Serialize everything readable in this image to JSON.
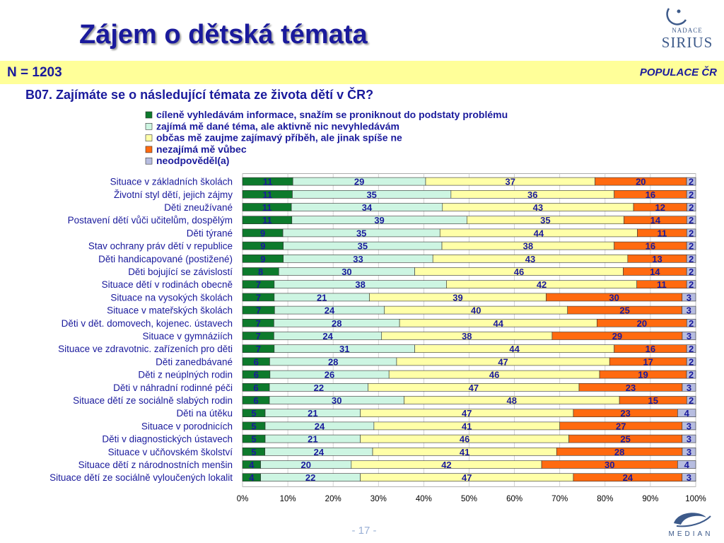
{
  "slide": {
    "title": "Zájem o dětská témata",
    "sample": "N = 1203",
    "population": "POPULACE ČR",
    "question": "B07. Zajímáte se o následující témata ze života dětí v ČR?",
    "page_number": "- 17 -"
  },
  "logos": {
    "sirius_line1": "NADACE",
    "sirius_line2": "SIRIUS",
    "median": "MEDIAN"
  },
  "chart_data": {
    "type": "bar",
    "orientation": "horizontal",
    "stacked": "percent",
    "title": "",
    "xlabel": "",
    "ylabel": "",
    "xlim": [
      0,
      100
    ],
    "x_ticks": [
      "0%",
      "10%",
      "20%",
      "30%",
      "40%",
      "50%",
      "60%",
      "70%",
      "80%",
      "90%",
      "100%"
    ],
    "legend_position": "top",
    "grid": true,
    "categories": [
      "Situace v základních školách",
      "Životní styl dětí, jejich zájmy",
      "Děti zneužívané",
      "Postavení dětí vůči učitelům, dospělým",
      "Děti týrané",
      "Stav ochrany práv dětí v republice",
      "Děti handicapované (postižené)",
      "Děti bojující se závislostí",
      "Situace dětí v rodinách obecně",
      "Situace na vysokých školách",
      "Situace v mateřských školách",
      "Děti v dět. domovech, kojenec. ústavech",
      "Situace v gymnáziích",
      "Situace ve zdravotnic. zařízeních pro děti",
      "Děti zanedbávané",
      "Děti z neúplných rodin",
      "Děti v náhradní rodinné péči",
      "Situace dětí ze sociálně slabých rodin",
      "Děti na útěku",
      "Situace v porodnicích",
      "Děti v diagnostických ústavech",
      "Situace v učňovském školství",
      "Situace dětí z národnostních menšin",
      "Situace dětí ze sociálně vyloučených lokalit"
    ],
    "series": [
      {
        "name": "cíleně vyhledávám informace, snažím se proniknout do podstaty problému",
        "color": "#0d7a2c",
        "values": [
          11,
          11,
          11,
          11,
          9,
          9,
          9,
          8,
          7,
          7,
          7,
          7,
          7,
          7,
          6,
          6,
          6,
          6,
          5,
          5,
          5,
          5,
          4,
          4
        ]
      },
      {
        "name": "zajímá mě dané téma, ale aktivně nic nevyhledávám",
        "color": "#cdf5e2",
        "values": [
          29,
          35,
          34,
          39,
          35,
          35,
          33,
          30,
          38,
          21,
          24,
          28,
          24,
          31,
          28,
          26,
          22,
          30,
          21,
          24,
          21,
          24,
          20,
          22
        ]
      },
      {
        "name": "občas mě zaujme zajímavý příběh, ale jinak spíše ne",
        "color": "#ffffa8",
        "values": [
          37,
          36,
          43,
          35,
          44,
          38,
          43,
          46,
          42,
          39,
          40,
          44,
          38,
          44,
          47,
          46,
          47,
          48,
          47,
          41,
          46,
          41,
          42,
          47
        ]
      },
      {
        "name": "nezajímá mě vůbec",
        "color": "#ff6a10",
        "values": [
          20,
          16,
          12,
          14,
          11,
          16,
          13,
          14,
          11,
          30,
          25,
          20,
          29,
          16,
          17,
          19,
          23,
          15,
          23,
          27,
          25,
          28,
          30,
          24
        ]
      },
      {
        "name": "neodpověděl(a)",
        "color": "#b7bde0",
        "values": [
          2,
          2,
          2,
          2,
          2,
          2,
          2,
          2,
          2,
          3,
          3,
          2,
          3,
          2,
          2,
          2,
          3,
          2,
          4,
          3,
          3,
          3,
          4,
          3
        ]
      }
    ]
  }
}
